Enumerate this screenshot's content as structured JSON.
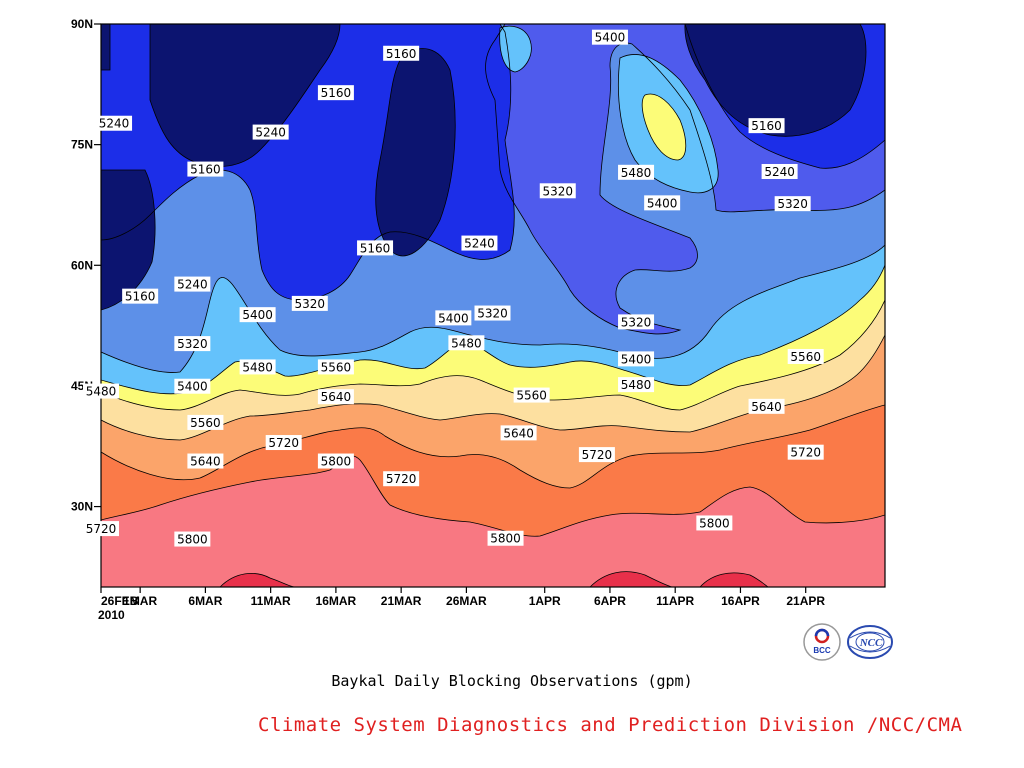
{
  "chart_data": {
    "type": "contour",
    "title": "Baykal Daily Blocking Observations (gpm)",
    "year_label": "2010",
    "x_tick_labels": [
      "26FEB",
      "1MAR",
      "6MAR",
      "11MAR",
      "16MAR",
      "21MAR",
      "26MAR",
      "1APR",
      "6APR",
      "11APR",
      "16APR",
      "21APR"
    ],
    "x_range": [
      "2010-02-26",
      "2010-04-26"
    ],
    "y_tick_labels": [
      "30N",
      "45N",
      "60N",
      "75N",
      "90N"
    ],
    "ylim": [
      20,
      90
    ],
    "contour_interval": 80,
    "levels": [
      5160,
      5240,
      5320,
      5400,
      5480,
      5560,
      5640,
      5720,
      5800
    ],
    "fill_colors": [
      "#0c1470",
      "#1c2ee8",
      "#4f5bed",
      "#5d90e8",
      "#64c2fb",
      "#fcfc78",
      "#fde0a0",
      "#fba46a",
      "#fa7a48",
      "#f87882",
      "#e8304a"
    ],
    "contour_labels": [
      {
        "date": "2010-04-21",
        "lat": 48.6,
        "value": 5560
      },
      {
        "date": "2010-04-18",
        "lat": 42.4,
        "value": 5640
      },
      {
        "date": "2010-04-21",
        "lat": 36.7,
        "value": 5720
      },
      {
        "date": "2010-04-14",
        "lat": 27.9,
        "value": 5800
      },
      {
        "date": "2010-02-26",
        "lat": 27.2,
        "value": 5720
      },
      {
        "date": "2010-02-27",
        "lat": 77.6,
        "value": 5240
      },
      {
        "date": "2010-03-01",
        "lat": 56.1,
        "value": 5160
      },
      {
        "date": "2010-03-05",
        "lat": 57.6,
        "value": 5240
      },
      {
        "date": "2010-03-05",
        "lat": 50.2,
        "value": 5320
      },
      {
        "date": "2010-03-05",
        "lat": 44.9,
        "value": 5400
      },
      {
        "date": "2010-02-26",
        "lat": 44.3,
        "value": 5480
      },
      {
        "date": "2010-03-06",
        "lat": 40.4,
        "value": 5560
      },
      {
        "date": "2010-03-06",
        "lat": 35.6,
        "value": 5640
      },
      {
        "date": "2010-03-05",
        "lat": 25.9,
        "value": 5800
      },
      {
        "date": "2010-03-06",
        "lat": 71.9,
        "value": 5160
      },
      {
        "date": "2010-03-11",
        "lat": 76.5,
        "value": 5240
      },
      {
        "date": "2010-03-10",
        "lat": 53.8,
        "value": 5400
      },
      {
        "date": "2010-03-10",
        "lat": 47.3,
        "value": 5480
      },
      {
        "date": "2010-03-12",
        "lat": 37.9,
        "value": 5720
      },
      {
        "date": "2010-03-14",
        "lat": 55.2,
        "value": 5320
      },
      {
        "date": "2010-03-16",
        "lat": 81.4,
        "value": 5160
      },
      {
        "date": "2010-03-16",
        "lat": 47.3,
        "value": 5560
      },
      {
        "date": "2010-03-16",
        "lat": 43.6,
        "value": 5640
      },
      {
        "date": "2010-03-16",
        "lat": 35.6,
        "value": 5800
      },
      {
        "date": "2010-03-21",
        "lat": 86.3,
        "value": 5160
      },
      {
        "date": "2010-03-19",
        "lat": 62.1,
        "value": 5160
      },
      {
        "date": "2010-03-21",
        "lat": 33.4,
        "value": 5720
      },
      {
        "date": "2010-03-27",
        "lat": 62.7,
        "value": 5240
      },
      {
        "date": "2010-03-25",
        "lat": 53.4,
        "value": 5400
      },
      {
        "date": "2010-03-26",
        "lat": 50.3,
        "value": 5480
      },
      {
        "date": "2010-03-28",
        "lat": 54.0,
        "value": 5320
      },
      {
        "date": "2010-03-31",
        "lat": 43.8,
        "value": 5560
      },
      {
        "date": "2010-03-30",
        "lat": 39.1,
        "value": 5640
      },
      {
        "date": "2010-03-29",
        "lat": 26.0,
        "value": 5800
      },
      {
        "date": "2010-04-02",
        "lat": 69.2,
        "value": 5320
      },
      {
        "date": "2010-04-05",
        "lat": 36.4,
        "value": 5720
      },
      {
        "date": "2010-04-06",
        "lat": 88.3,
        "value": 5400
      },
      {
        "date": "2010-04-08",
        "lat": 71.5,
        "value": 5480
      },
      {
        "date": "2010-04-10",
        "lat": 67.7,
        "value": 5400
      },
      {
        "date": "2010-04-08",
        "lat": 52.9,
        "value": 5320
      },
      {
        "date": "2010-04-08",
        "lat": 48.3,
        "value": 5400
      },
      {
        "date": "2010-04-08",
        "lat": 45.1,
        "value": 5480
      },
      {
        "date": "2010-04-18",
        "lat": 77.3,
        "value": 5160
      },
      {
        "date": "2010-04-19",
        "lat": 71.6,
        "value": 5240
      },
      {
        "date": "2010-04-20",
        "lat": 67.6,
        "value": 5320
      }
    ]
  },
  "footer": "Climate System Diagnostics and Prediction Division /NCC/CMA",
  "logos": [
    {
      "icon": "bcc-logo-icon",
      "text": "BCC"
    },
    {
      "icon": "ncc-logo-icon",
      "text": "NCC"
    }
  ]
}
